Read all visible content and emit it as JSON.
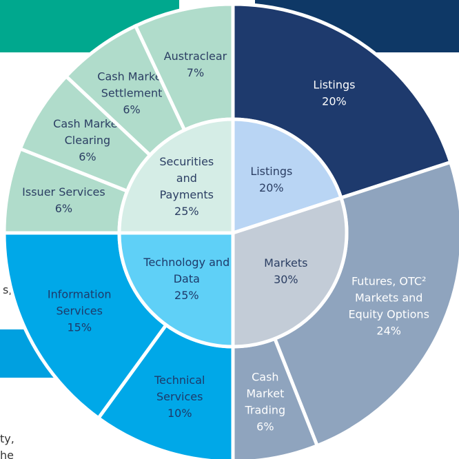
{
  "chart_data": {
    "type": "sunburst",
    "inner": [
      {
        "name": "Listings",
        "value": 20,
        "value_label": "20%",
        "color": "#b9d5f4",
        "text_color": "#2b3e63"
      },
      {
        "name": "Markets",
        "value": 30,
        "value_label": "30%",
        "color": "#c3ccd7",
        "text_color": "#2b3e63"
      },
      {
        "name": "Technology and\nData",
        "value": 25,
        "value_label": "25%",
        "color": "#5fd0f7",
        "text_color": "#1e3a6a"
      },
      {
        "name": "Securities\nand\nPayments",
        "value": 25,
        "value_label": "25%",
        "color": "#d5ede6",
        "text_color": "#2b3e63"
      }
    ],
    "outer": [
      {
        "name": "Listings",
        "value": 20,
        "value_label": "20%",
        "color": "#1e3a6d",
        "text_color": "#ffffff"
      },
      {
        "name": "Futures, OTC²\nMarkets and\nEquity Options",
        "value": 24,
        "value_label": "24%",
        "color": "#8fa4be",
        "text_color": "#ffffff"
      },
      {
        "name": "Cash\nMarket\nTrading",
        "value": 6,
        "value_label": "6%",
        "color": "#8fa4be",
        "text_color": "#ffffff"
      },
      {
        "name": "Technical\nServices",
        "value": 10,
        "value_label": "10%",
        "color": "#00a8e8",
        "text_color": "#1e3a6a"
      },
      {
        "name": "Information\nServices",
        "value": 15,
        "value_label": "15%",
        "color": "#00a8e8",
        "text_color": "#1e3a6a"
      },
      {
        "name": "Issuer Services",
        "value": 6,
        "value_label": "6%",
        "color": "#b0dccb",
        "text_color": "#2b3e63"
      },
      {
        "name": "Cash Market\nClearing",
        "value": 6,
        "value_label": "6%",
        "color": "#b0dccb",
        "text_color": "#2b3e63"
      },
      {
        "name": "Cash Market\nSettlement",
        "value": 6,
        "value_label": "6%",
        "color": "#b0dccb",
        "text_color": "#2b3e63"
      },
      {
        "name": "Austraclear",
        "value": 7,
        "value_label": "7%",
        "color": "#b0dccb",
        "text_color": "#2b3e63"
      }
    ]
  },
  "fragments": [
    "s,",
    "ty,",
    "he"
  ]
}
